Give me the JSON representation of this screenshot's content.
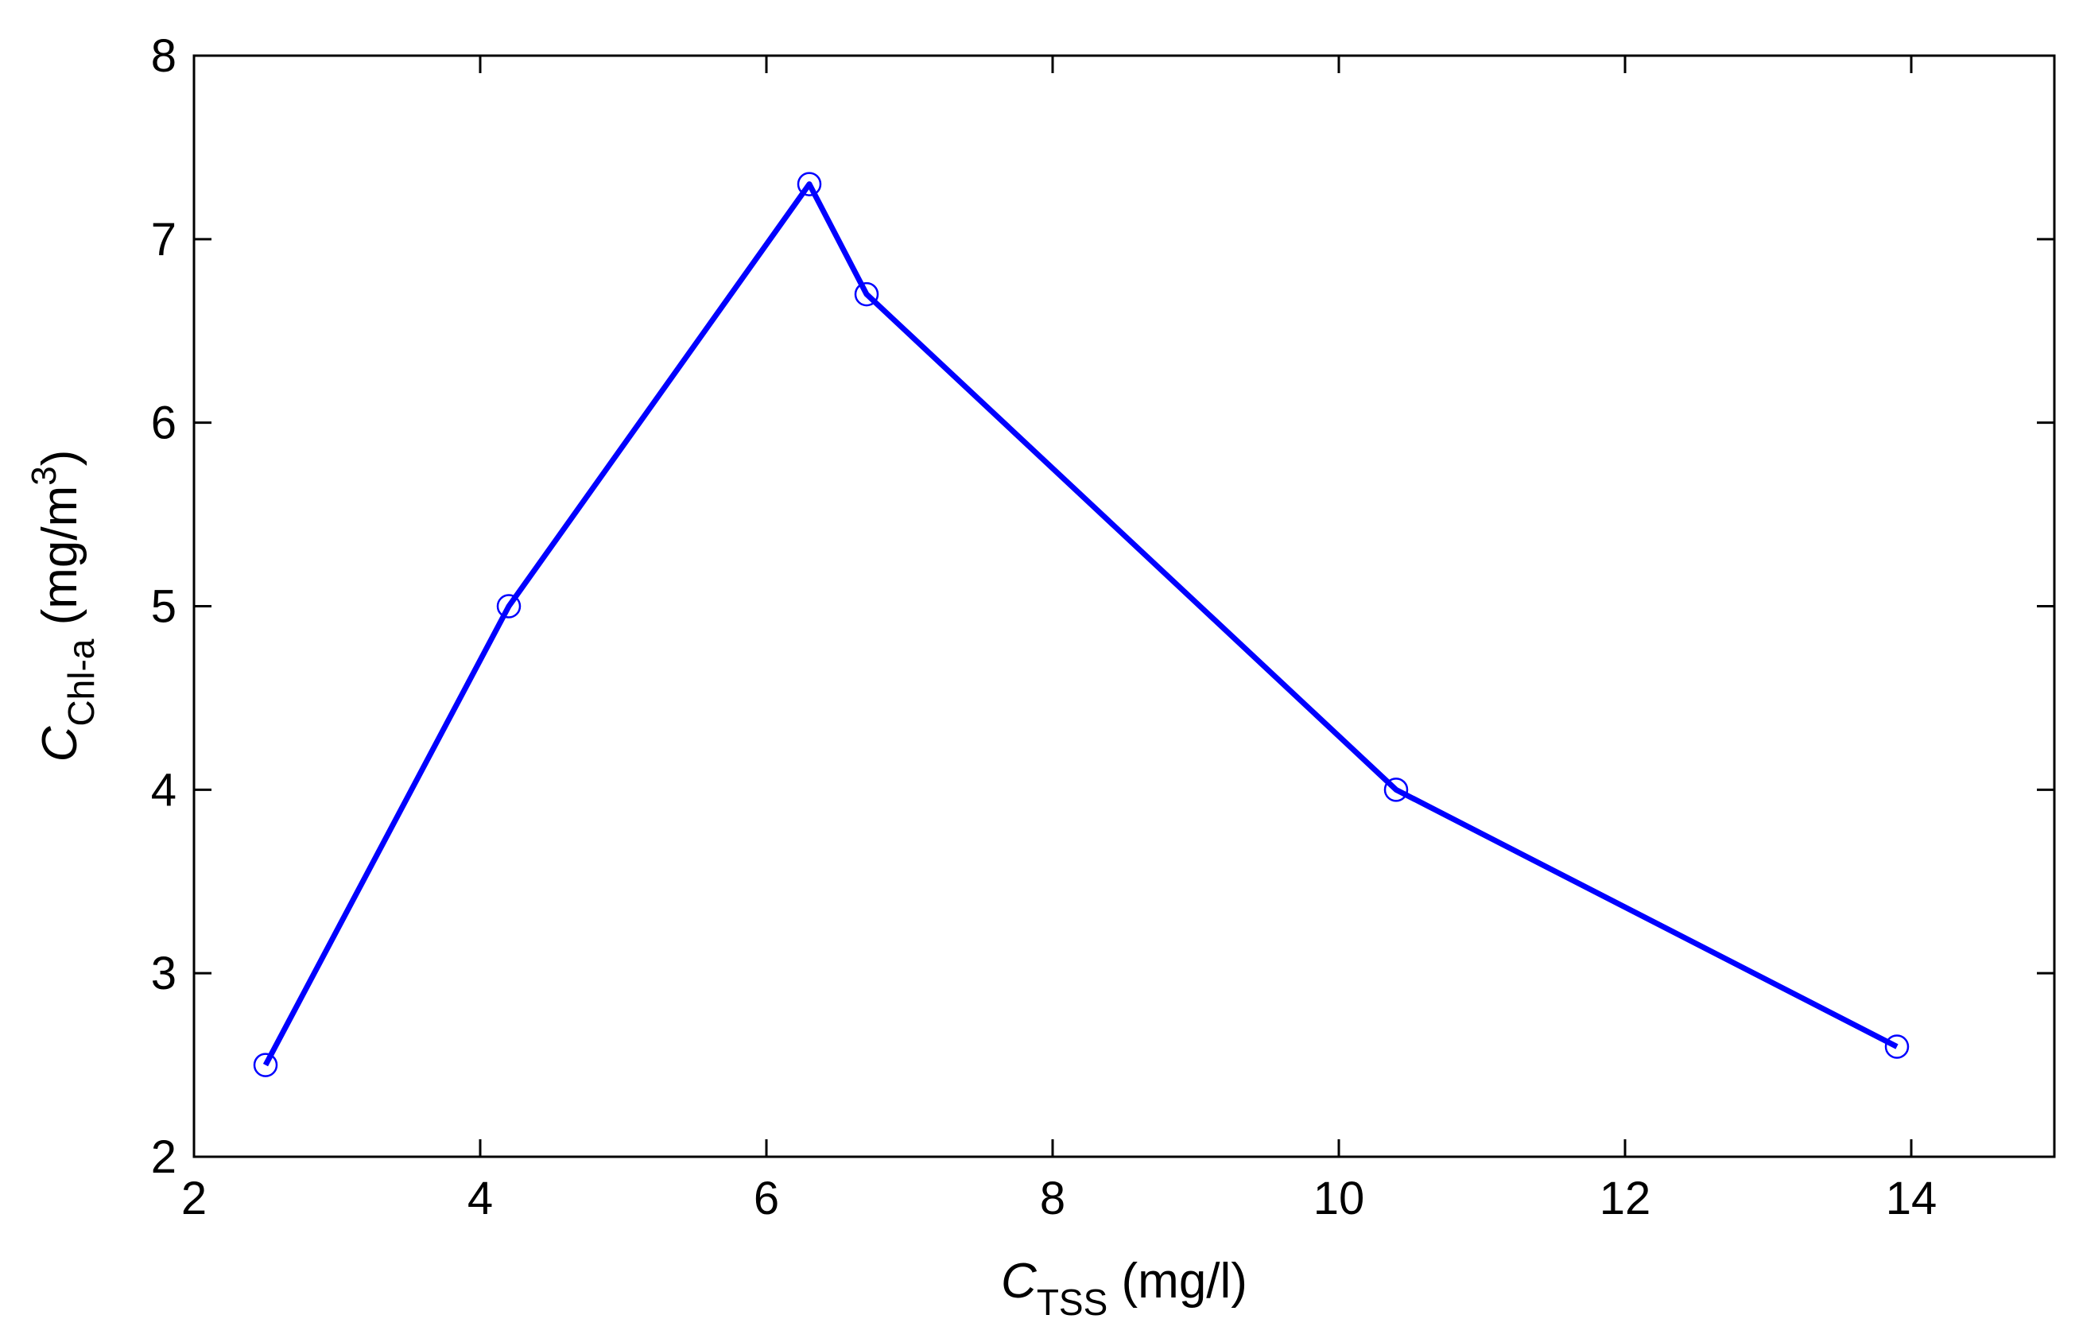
{
  "chart_data": {
    "type": "line",
    "title": "",
    "x": [
      2.5,
      4.2,
      6.3,
      6.7,
      10.4,
      13.9
    ],
    "series": [
      {
        "values": [
          2.5,
          5.0,
          7.3,
          6.7,
          4.0,
          2.6
        ],
        "color": "#0000ff",
        "marker": "circle"
      }
    ],
    "xlabel": {
      "main": "C",
      "sub": "TSS",
      "unit": " (mg/l)"
    },
    "ylabel": {
      "main": "C",
      "sub": "Chl-a",
      "unit_pre": " (mg/m",
      "unit_sup": "3",
      "unit_post": ")"
    },
    "xlim": [
      2,
      15
    ],
    "ylim": [
      2,
      8
    ],
    "xticks": [
      2,
      4,
      6,
      8,
      10,
      12,
      14
    ],
    "yticks": [
      2,
      3,
      4,
      5,
      6,
      7,
      8
    ],
    "grid": false
  }
}
